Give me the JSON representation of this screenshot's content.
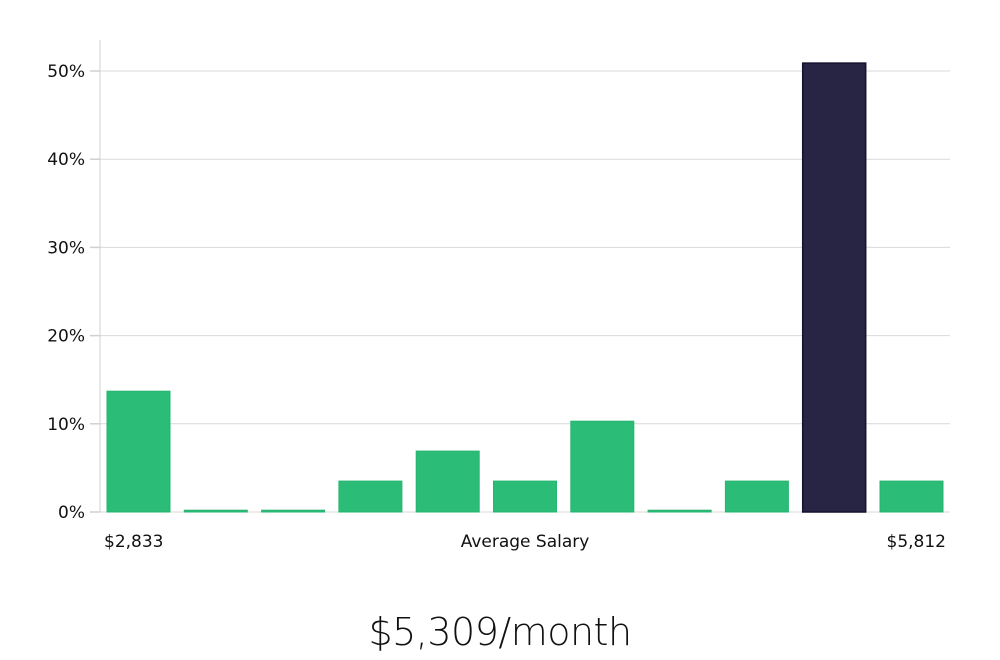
{
  "chart_data": {
    "type": "bar",
    "title": "",
    "xlabel": "Average Salary",
    "ylabel": "",
    "x_range_labels": {
      "min": "$2,833",
      "max": "$5,812"
    },
    "yticks": [
      "0%",
      "10%",
      "20%",
      "30%",
      "40%",
      "50%"
    ],
    "ylim": [
      0,
      53
    ],
    "grid": true,
    "categories": [
      "bin1",
      "bin2",
      "bin3",
      "bin4",
      "bin5",
      "bin6",
      "bin7",
      "bin8",
      "bin9",
      "bin10",
      "bin11"
    ],
    "values": [
      13.7,
      0.2,
      0.2,
      3.5,
      6.9,
      3.5,
      10.3,
      0.2,
      3.5,
      50.9,
      3.5
    ],
    "highlight_index": 9,
    "colors": {
      "bar": "#2bbd78",
      "highlight": "#272543",
      "highlight_border": "#14122e",
      "grid": "#d9d9d9",
      "axis": "#d0d0d0"
    }
  },
  "summary": {
    "headline": "$5,309/month"
  }
}
